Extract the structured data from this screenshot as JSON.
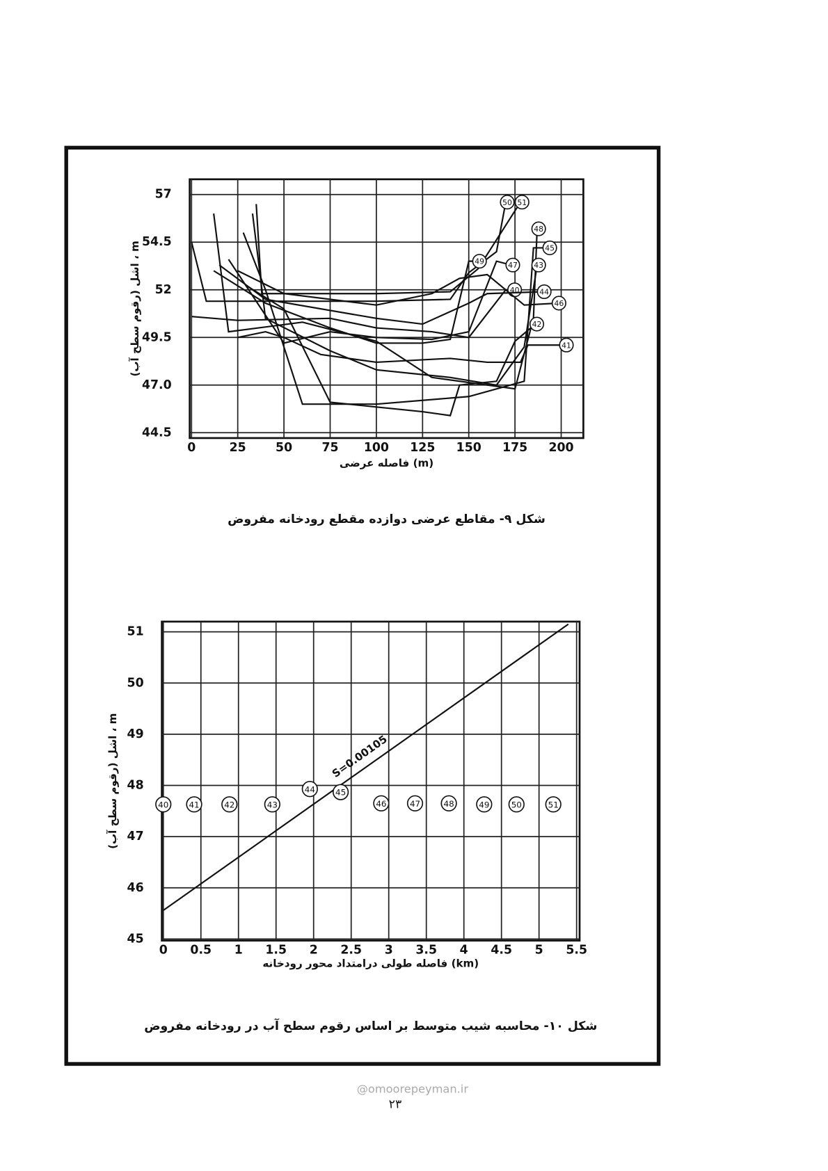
{
  "chart_data": [
    {
      "type": "line",
      "grid": true,
      "color": "#111",
      "xlabel": "فاصله عرضی (m)",
      "ylabel": "اشل (رقوم سطح آب) ، m",
      "caption": "شکل ۹- مقاطع عرضی دوازده مقطع رودخانه مفروض",
      "xlim": [
        -1,
        212
      ],
      "ylim": [
        44.22,
        57.8
      ],
      "xticks": [
        0,
        25,
        50,
        75,
        100,
        125,
        150,
        175,
        200
      ],
      "yticks": [
        44.5,
        {
          "value": 47,
          "label": "47.0"
        },
        49.5,
        52,
        54.5,
        57
      ],
      "series": [
        {
          "name": "50",
          "x": [
            0,
            8,
            100,
            140,
            150,
            165,
            170
          ],
          "values": [
            54.5,
            51.4,
            51.4,
            51.5,
            52.9,
            54,
            56.6
          ]
        },
        {
          "name": "51",
          "x": [
            35,
            38,
            100,
            140,
            155,
            178
          ],
          "values": [
            56.5,
            51.8,
            51.8,
            51.9,
            53.1,
            56.6
          ]
        },
        {
          "name": "48",
          "x": [
            12,
            20,
            60,
            100,
            130,
            175,
            185,
            187
          ],
          "values": [
            56,
            49.8,
            50.3,
            49.3,
            47.4,
            46.8,
            50.5,
            55.2
          ]
        },
        {
          "name": "45",
          "x": [
            28,
            40,
            50,
            60,
            100,
            150,
            180,
            185,
            193
          ],
          "values": [
            55,
            52,
            49,
            46,
            46,
            46.4,
            47.2,
            54.2,
            54.2
          ]
        },
        {
          "name": "49",
          "x": [
            12,
            40,
            75,
            100,
            125,
            140,
            150,
            155
          ],
          "values": [
            53,
            51.3,
            50,
            49.2,
            49.2,
            49.4,
            53.5,
            53.5
          ]
        },
        {
          "name": "47",
          "x": [
            20,
            50,
            75,
            100,
            130,
            150,
            165,
            173
          ],
          "values": [
            53.6,
            49.2,
            49.8,
            49.5,
            49.4,
            49.8,
            53.5,
            53.3
          ]
        },
        {
          "name": "43",
          "x": [
            33,
            40,
            75,
            100,
            140,
            165,
            180,
            187
          ],
          "values": [
            56,
            50.5,
            48.8,
            47.8,
            47.4,
            47,
            49,
            53.3
          ]
        },
        {
          "name": "40",
          "x": [
            0,
            25,
            75,
            100,
            130,
            150,
            170,
            174
          ],
          "values": [
            50.6,
            50.4,
            50.5,
            50,
            49.8,
            49.5,
            52,
            52
          ]
        },
        {
          "name": "44",
          "x": [
            15,
            40,
            100,
            125,
            150,
            160,
            190
          ],
          "values": [
            53.3,
            51.5,
            50.5,
            50.2,
            51.3,
            51.8,
            51.9
          ]
        },
        {
          "name": "46",
          "x": [
            25,
            50,
            100,
            130,
            145,
            160,
            180,
            198
          ],
          "values": [
            53,
            51.8,
            51.2,
            51.8,
            52.6,
            52.8,
            51.2,
            51.3
          ]
        },
        {
          "name": "42",
          "x": [
            30,
            50,
            75,
            125,
            140,
            145,
            165,
            175,
            186
          ],
          "values": [
            52.2,
            51,
            46.1,
            45.6,
            45.4,
            47,
            47.2,
            49.3,
            50.2
          ]
        },
        {
          "name": "41",
          "x": [
            25,
            40,
            50,
            70,
            100,
            140,
            160,
            178,
            182,
            202
          ],
          "values": [
            49.5,
            49.8,
            49.5,
            48.6,
            48.2,
            48.4,
            48.2,
            48.2,
            49.1,
            49.1
          ]
        }
      ]
    },
    {
      "type": "line",
      "grid": true,
      "color": "#111",
      "xlabel": "فاصله طولی درامتداد محور رودخانه (km)",
      "ylabel": "اشل (رقوم سطح آب) ، m",
      "caption": "شکل ۱۰- محاسبه شیب متوسط بر اساس رقوم سطح آب در رودخانه مفروض",
      "xlim": [
        -0.02,
        5.54
      ],
      "ylim": [
        44.97,
        51.2
      ],
      "xticks": [
        0,
        0.5,
        1,
        1.5,
        2,
        2.5,
        3,
        3.5,
        4,
        4.5,
        5,
        5.5
      ],
      "yticks": [
        45,
        46,
        47,
        48,
        49,
        50,
        51
      ],
      "series": [
        {
          "name": "S=0.00105",
          "x": [
            0,
            5.39
          ],
          "values": [
            45.56,
            51.15
          ]
        }
      ],
      "points": {
        "labels": [
          "40",
          "41",
          "42",
          "43",
          "44",
          "45",
          "46",
          "47",
          "48",
          "49",
          "50",
          "51"
        ],
        "x": [
          0,
          0.41,
          0.88,
          1.45,
          1.95,
          2.36,
          2.9,
          3.35,
          3.8,
          4.27,
          4.7,
          5.19
        ],
        "values": [
          47.63,
          47.63,
          47.63,
          47.63,
          47.93,
          47.87,
          47.65,
          47.65,
          47.65,
          47.63,
          47.63,
          47.63
        ]
      }
    }
  ],
  "page_number": "۲۳",
  "watermark": "@omoorepeyman.ir"
}
